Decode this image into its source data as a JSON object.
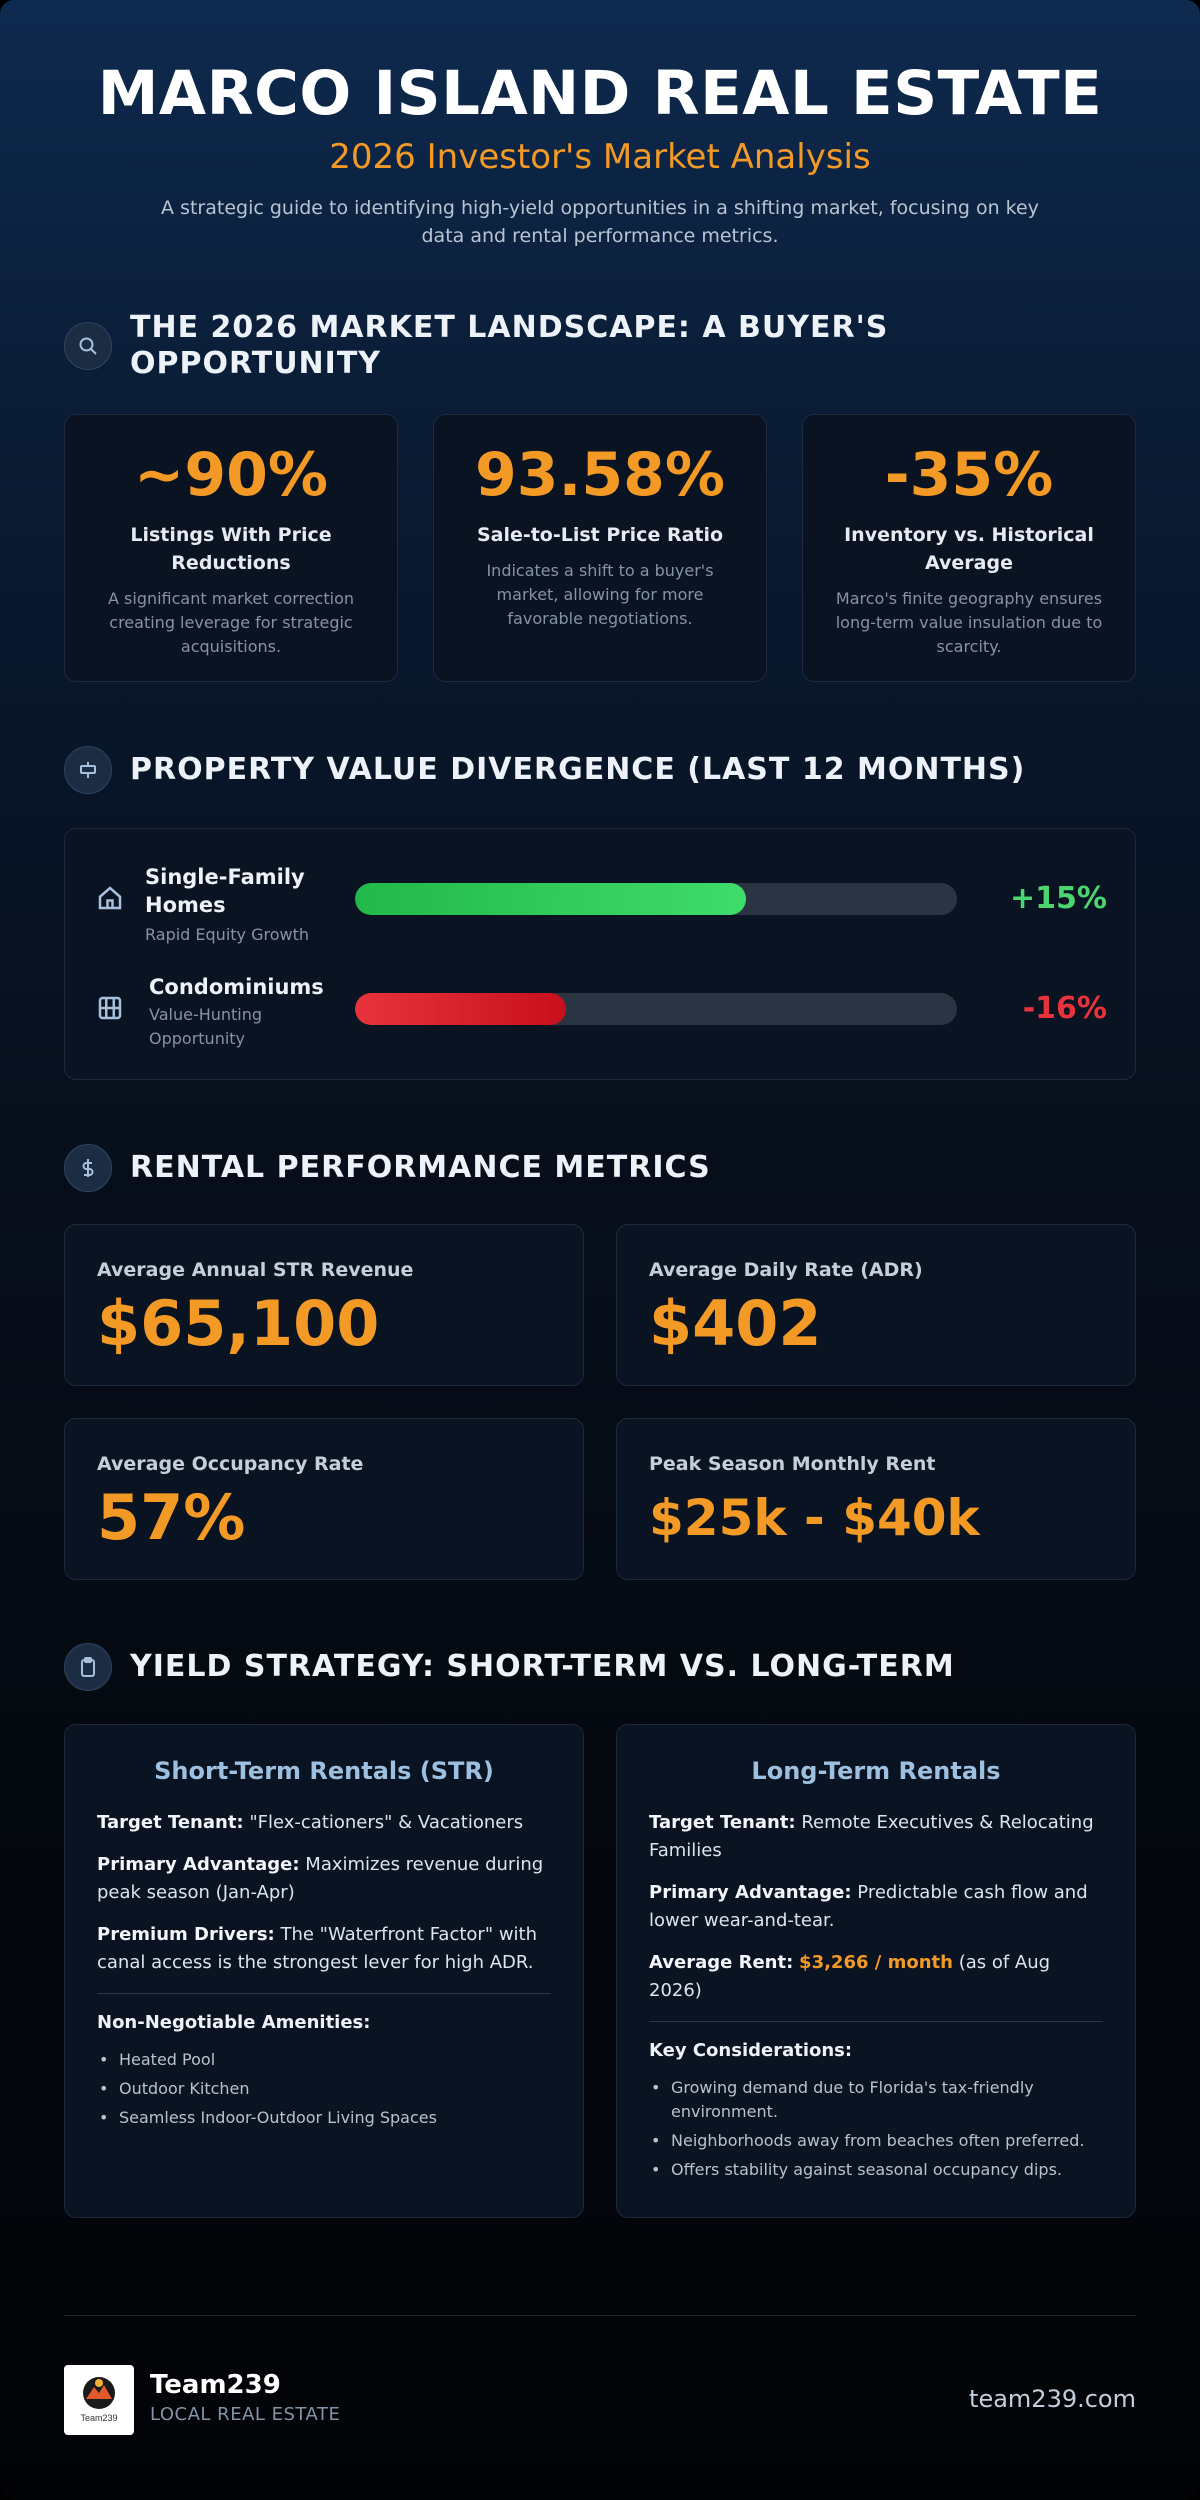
{
  "header": {
    "title": "MARCO ISLAND REAL ESTATE",
    "subtitle": "2026 Investor's Market Analysis",
    "intro": "A strategic guide to identifying high-yield opportunities in a shifting market, focusing on key data and rental performance metrics."
  },
  "landscape": {
    "title": "THE 2026 MARKET LANDSCAPE: A BUYER'S OPPORTUNITY",
    "icon": "search-icon",
    "stats": [
      {
        "value": "~90%",
        "label": "Listings With Price Reductions",
        "desc": "A significant market correction creating leverage for strategic acquisitions."
      },
      {
        "value": "93.58%",
        "label": "Sale-to-List Price Ratio",
        "desc": "Indicates a shift to a buyer's market, allowing for more favorable negotiations."
      },
      {
        "value": "-35%",
        "label": "Inventory vs. Historical Average",
        "desc": "Marco's finite geography ensures long-term value insulation due to scarcity."
      }
    ]
  },
  "divergence": {
    "title": "PROPERTY VALUE DIVERGENCE (LAST 12 MONTHS)",
    "icon": "sign-icon",
    "rows": [
      {
        "name": "Single-Family Homes",
        "sub": "Rapid Equity Growth",
        "pct": "+15%",
        "fill": 0.65,
        "color": "#4cd66f",
        "icon": "house-icon"
      },
      {
        "name": "Condominiums",
        "sub": "Value-Hunting Opportunity",
        "pct": "-16%",
        "fill": 0.35,
        "color": "#e8323c",
        "icon": "building-icon"
      }
    ]
  },
  "rental": {
    "title": "RENTAL PERFORMANCE METRICS",
    "icon": "dollar-icon",
    "metrics": [
      {
        "label": "Average Annual STR Revenue",
        "value": "$65,100"
      },
      {
        "label": "Average Daily Rate (ADR)",
        "value": "$402"
      },
      {
        "label": "Average Occupancy Rate",
        "value": "57%"
      },
      {
        "label": "Peak Season Monthly Rent",
        "value": "$25k - $40k"
      }
    ]
  },
  "yield": {
    "title": "YIELD STRATEGY: SHORT-TERM VS. LONG-TERM",
    "icon": "clipboard-icon",
    "str": {
      "title": "Short-Term Rentals (STR)",
      "target_label": "Target Tenant:",
      "target": " \"Flex-cationers\" & Vacationers",
      "adv_label": "Primary Advantage:",
      "adv": " Maximizes revenue during peak season (Jan-Apr)",
      "drivers_label": "Premium Drivers:",
      "drivers": " The \"Waterfront Factor\" with canal access is the strongest lever for high ADR.",
      "list_title": "Non-Negotiable Amenities:",
      "list": [
        "Heated Pool",
        "Outdoor Kitchen",
        "Seamless Indoor-Outdoor Living Spaces"
      ]
    },
    "ltr": {
      "title": "Long-Term Rentals",
      "target_label": "Target Tenant:",
      "target": " Remote Executives & Relocating Families",
      "adv_label": "Primary Advantage:",
      "adv": " Predictable cash flow and lower wear-and-tear.",
      "rent_label": "Average Rent:",
      "rent_value": "$3,266 / month",
      "rent_note": " (as of Aug 2026)",
      "list_title": "Key Considerations:",
      "list": [
        "Growing demand due to Florida's tax-friendly environment.",
        "Neighborhoods away from beaches often preferred.",
        "Offers stability against seasonal occupancy dips."
      ]
    }
  },
  "footer": {
    "brand": "Team239",
    "sub": "LOCAL REAL ESTATE",
    "site": "team239.com",
    "logo_text": "Team239"
  }
}
